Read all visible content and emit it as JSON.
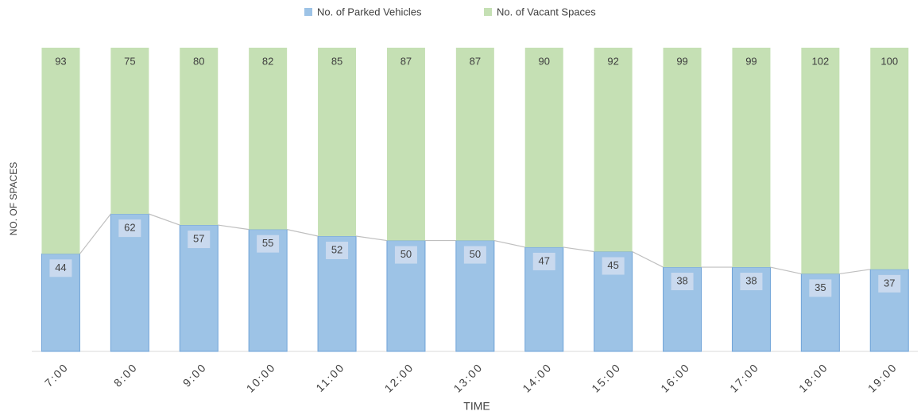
{
  "chart_data": {
    "type": "bar",
    "stacked": true,
    "series_lines": true,
    "x_label": "TIME",
    "y_label": "NO. OF SPACES",
    "categories": [
      "7:00",
      "8:00",
      "9:00",
      "10:00",
      "11:00",
      "12:00",
      "13:00",
      "14:00",
      "15:00",
      "16:00",
      "17:00",
      "18:00",
      "19:00"
    ],
    "series": [
      {
        "name": "No. of Parked Vehicles",
        "color": "#9dc3e6",
        "values": [
          44,
          62,
          57,
          55,
          52,
          50,
          50,
          47,
          45,
          38,
          38,
          35,
          37
        ]
      },
      {
        "name": "No. of Vacant Spaces",
        "color": "#c5e0b4",
        "values": [
          93,
          75,
          80,
          82,
          85,
          87,
          87,
          90,
          92,
          99,
          99,
          102,
          100
        ]
      }
    ],
    "ylim": [
      0,
      137
    ]
  }
}
